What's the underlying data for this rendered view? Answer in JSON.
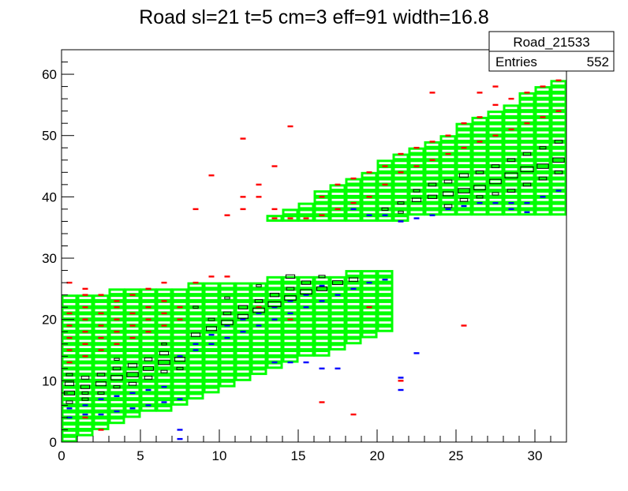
{
  "chart_data": {
    "type": "heatmap",
    "title": "Road sl=21 t=5 cm=3 eff=91 width=16.8",
    "xlabel": "",
    "ylabel": "",
    "xlim": [
      0,
      32
    ],
    "ylim": [
      0,
      64
    ],
    "x_ticks": [
      0,
      5,
      10,
      15,
      20,
      25,
      30
    ],
    "y_ticks": [
      0,
      10,
      20,
      30,
      40,
      50,
      60
    ],
    "grid": false,
    "legend": "none",
    "stats_box": {
      "name": "Road_21533",
      "entries_label": "Entries",
      "entries_value": "552"
    },
    "colors": {
      "road": "#00ff00",
      "red": "#ff0000",
      "blue": "#0000ff",
      "hits": "#000000"
    },
    "road_bands": [
      {
        "x_start": 0,
        "x_end": 21,
        "y_low_start": 0,
        "y_low_end": 18,
        "y_high_start": 23,
        "y_high_end": 27
      },
      {
        "x_start": 13,
        "x_end": 32,
        "y_low_start": 36,
        "y_low_end": 37,
        "y_high_start": 36,
        "y_high_end": 58
      }
    ],
    "red_points": [
      [
        0.5,
        13
      ],
      [
        0.5,
        15
      ],
      [
        0.5,
        17
      ],
      [
        0.5,
        19
      ],
      [
        0.5,
        21
      ],
      [
        1.5,
        14
      ],
      [
        1.5,
        16
      ],
      [
        1.5,
        18
      ],
      [
        1.5,
        20
      ],
      [
        1.5,
        22
      ],
      [
        1.5,
        24
      ],
      [
        2.5,
        15
      ],
      [
        2.5,
        17
      ],
      [
        2.5,
        19
      ],
      [
        2.5,
        21
      ],
      [
        3.5,
        16
      ],
      [
        3.5,
        18
      ],
      [
        3.5,
        20
      ],
      [
        3.5,
        22
      ],
      [
        4.5,
        17
      ],
      [
        4.5,
        19
      ],
      [
        4.5,
        21
      ],
      [
        5.5,
        18
      ],
      [
        5.5,
        20
      ],
      [
        5.5,
        22
      ],
      [
        6.5,
        19
      ],
      [
        6.5,
        21
      ],
      [
        6.5,
        23
      ],
      [
        7.5,
        20
      ],
      [
        7.5,
        22
      ],
      [
        8.5,
        26
      ],
      [
        9.5,
        27
      ],
      [
        10.5,
        27
      ],
      [
        0.5,
        26
      ],
      [
        1.5,
        25
      ],
      [
        2.5,
        24
      ],
      [
        3.5,
        23
      ],
      [
        4.5,
        24
      ],
      [
        5.5,
        25
      ],
      [
        6.5,
        26
      ],
      [
        1.5,
        4
      ],
      [
        2.5,
        2
      ],
      [
        12.5,
        22
      ],
      [
        13.5,
        20
      ],
      [
        14.5,
        20
      ],
      [
        19.5,
        22
      ],
      [
        25.5,
        19
      ],
      [
        21.5,
        10
      ],
      [
        16.5,
        6.5
      ],
      [
        18.5,
        4.5
      ],
      [
        13.5,
        36.5
      ],
      [
        14.5,
        36.5
      ],
      [
        15.5,
        36.5
      ],
      [
        16.5,
        37
      ],
      [
        17.5,
        38
      ],
      [
        18.5,
        39
      ],
      [
        19.5,
        40
      ],
      [
        20.5,
        42
      ],
      [
        21.5,
        44
      ],
      [
        22.5,
        45
      ],
      [
        23.5,
        46
      ],
      [
        24.5,
        47
      ],
      [
        25.5,
        48
      ],
      [
        26.5,
        49
      ],
      [
        27.5,
        50
      ],
      [
        28.5,
        51
      ],
      [
        29.5,
        52
      ],
      [
        30.5,
        53
      ],
      [
        31.5,
        54
      ],
      [
        16.5,
        40
      ],
      [
        17.5,
        42
      ],
      [
        18.5,
        43
      ],
      [
        19.5,
        44
      ],
      [
        20.5,
        45
      ],
      [
        21.5,
        47
      ],
      [
        22.5,
        48
      ],
      [
        23.5,
        49
      ],
      [
        24.5,
        50
      ],
      [
        25.5,
        52
      ],
      [
        26.5,
        53
      ],
      [
        27.5,
        55
      ],
      [
        28.5,
        56
      ],
      [
        29.5,
        57
      ],
      [
        30.5,
        58
      ],
      [
        31.5,
        59
      ],
      [
        9.5,
        43.5
      ],
      [
        11.5,
        40
      ],
      [
        11.5,
        38
      ],
      [
        10.5,
        37
      ],
      [
        8.5,
        38
      ],
      [
        12.5,
        42
      ],
      [
        13.5,
        45
      ],
      [
        14.5,
        51.5
      ],
      [
        11.5,
        49.5
      ],
      [
        13.5,
        38
      ],
      [
        12.5,
        40
      ],
      [
        26.5,
        57
      ],
      [
        27.5,
        58
      ],
      [
        21.5,
        36
      ],
      [
        23.5,
        57
      ]
    ],
    "blue_points": [
      [
        0.5,
        4
      ],
      [
        1.5,
        4.5
      ],
      [
        2.5,
        4.5
      ],
      [
        3.5,
        5
      ],
      [
        4.5,
        5.5
      ],
      [
        5.5,
        6
      ],
      [
        6.5,
        6.5
      ],
      [
        7.5,
        7
      ],
      [
        0.5,
        5.5
      ],
      [
        1.5,
        6
      ],
      [
        2.5,
        7
      ],
      [
        3.5,
        7.5
      ],
      [
        4.5,
        8
      ],
      [
        5.5,
        8.5
      ],
      [
        6.5,
        9
      ],
      [
        8.5,
        15
      ],
      [
        9.5,
        16
      ],
      [
        10.5,
        17
      ],
      [
        11.5,
        18
      ],
      [
        12.5,
        19
      ],
      [
        13.5,
        20
      ],
      [
        14.5,
        21
      ],
      [
        15.5,
        22
      ],
      [
        16.5,
        23
      ],
      [
        17.5,
        24
      ],
      [
        18.5,
        25
      ],
      [
        19.5,
        26
      ],
      [
        20.5,
        26.5
      ],
      [
        7.5,
        14
      ],
      [
        8.5,
        16
      ],
      [
        9.5,
        17.5
      ],
      [
        10.5,
        19
      ],
      [
        11.5,
        20
      ],
      [
        12.5,
        21
      ],
      [
        13.5,
        22
      ],
      [
        14.5,
        23
      ],
      [
        15.5,
        24
      ],
      [
        16.5,
        25.5
      ],
      [
        7.5,
        2
      ],
      [
        7.5,
        0.5
      ],
      [
        13.5,
        13
      ],
      [
        14.5,
        13
      ],
      [
        15.5,
        13
      ],
      [
        16.5,
        12
      ],
      [
        17.5,
        12
      ],
      [
        22.5,
        14.5
      ],
      [
        21.5,
        8.5
      ],
      [
        21.5,
        10.5
      ],
      [
        21.5,
        36
      ],
      [
        22.5,
        36.5
      ],
      [
        23.5,
        37
      ],
      [
        24.5,
        38
      ],
      [
        25.5,
        38.5
      ],
      [
        26.5,
        39
      ],
      [
        27.5,
        39
      ],
      [
        28.5,
        39
      ],
      [
        29.5,
        39
      ],
      [
        30.5,
        40
      ],
      [
        31.5,
        41
      ],
      [
        20.5,
        37
      ],
      [
        19.5,
        37
      ],
      [
        18.5,
        38
      ],
      [
        28.5,
        38
      ],
      [
        29.5,
        37.5
      ]
    ],
    "black_boxes": [
      [
        0.5,
        8,
        0.8
      ],
      [
        0.5,
        9.5,
        0.7
      ],
      [
        0.5,
        11,
        0.5
      ],
      [
        1.5,
        9,
        0.7
      ],
      [
        1.5,
        10.5,
        0.6
      ],
      [
        1.5,
        8,
        0.5
      ],
      [
        2.5,
        9.5,
        0.8
      ],
      [
        2.5,
        11,
        0.6
      ],
      [
        2.5,
        8,
        0.5
      ],
      [
        3.5,
        10.5,
        0.9
      ],
      [
        3.5,
        12,
        0.6
      ],
      [
        3.5,
        9,
        0.5
      ],
      [
        4.5,
        11,
        0.9
      ],
      [
        4.5,
        12.5,
        0.7
      ],
      [
        4.5,
        9.5,
        0.6
      ],
      [
        5.5,
        12,
        0.8
      ],
      [
        5.5,
        13.5,
        0.6
      ],
      [
        5.5,
        10.5,
        0.6
      ],
      [
        6.5,
        13,
        0.9
      ],
      [
        6.5,
        14.5,
        0.7
      ],
      [
        6.5,
        11.5,
        0.5
      ],
      [
        7.5,
        13.5,
        0.8
      ],
      [
        7.5,
        12,
        0.5
      ],
      [
        8.5,
        17.5,
        0.7
      ],
      [
        9.5,
        18.5,
        0.8
      ],
      [
        10.5,
        19.5,
        0.9
      ],
      [
        11.5,
        20.5,
        0.8
      ],
      [
        12.5,
        21.5,
        0.9
      ],
      [
        13.5,
        22.5,
        1.0
      ],
      [
        14.5,
        23.5,
        0.9
      ],
      [
        15.5,
        24.5,
        0.9
      ],
      [
        16.5,
        25,
        0.8
      ],
      [
        17.5,
        26,
        0.8
      ],
      [
        18.5,
        26.5,
        0.7
      ],
      [
        9.5,
        20,
        0.5
      ],
      [
        10.5,
        21,
        0.6
      ],
      [
        11.5,
        22,
        0.7
      ],
      [
        12.5,
        23,
        0.6
      ],
      [
        13.5,
        24,
        0.7
      ],
      [
        14.5,
        25,
        0.6
      ],
      [
        15.5,
        26,
        0.7
      ],
      [
        16.5,
        27,
        0.5
      ],
      [
        0.5,
        6.5,
        0.5
      ],
      [
        1.5,
        7,
        0.5
      ],
      [
        3.5,
        13.5,
        0.4
      ],
      [
        6.5,
        16,
        0.4
      ],
      [
        8.5,
        22,
        0.4
      ],
      [
        10.5,
        23.5,
        0.4
      ],
      [
        12.5,
        25.5,
        0.4
      ],
      [
        14.5,
        27,
        0.7
      ],
      [
        20.5,
        38,
        0.5
      ],
      [
        21.5,
        39,
        0.5
      ],
      [
        22.5,
        39.5,
        0.7
      ],
      [
        23.5,
        40,
        0.7
      ],
      [
        24.5,
        40.5,
        0.8
      ],
      [
        25.5,
        41,
        0.9
      ],
      [
        26.5,
        41.5,
        0.9
      ],
      [
        27.5,
        42.5,
        0.9
      ],
      [
        28.5,
        43.5,
        1.0
      ],
      [
        29.5,
        44.5,
        1.0
      ],
      [
        30.5,
        45,
        0.9
      ],
      [
        31.5,
        46,
        0.9
      ],
      [
        22.5,
        41,
        0.5
      ],
      [
        23.5,
        42,
        0.6
      ],
      [
        24.5,
        42.5,
        0.6
      ],
      [
        25.5,
        43.5,
        0.7
      ],
      [
        26.5,
        44,
        0.6
      ],
      [
        27.5,
        45,
        0.6
      ],
      [
        28.5,
        46,
        0.6
      ],
      [
        29.5,
        47,
        0.6
      ],
      [
        30.5,
        48,
        0.5
      ],
      [
        31.5,
        49,
        0.6
      ],
      [
        21.5,
        37.5,
        0.4
      ],
      [
        24.5,
        38.5,
        0.6
      ],
      [
        25.5,
        39.5,
        0.6
      ],
      [
        26.5,
        40,
        0.5
      ],
      [
        27.5,
        40.5,
        0.5
      ],
      [
        28.5,
        41,
        0.6
      ],
      [
        29.5,
        42,
        0.6
      ],
      [
        30.5,
        43,
        0.6
      ],
      [
        31.5,
        44,
        0.6
      ]
    ]
  }
}
